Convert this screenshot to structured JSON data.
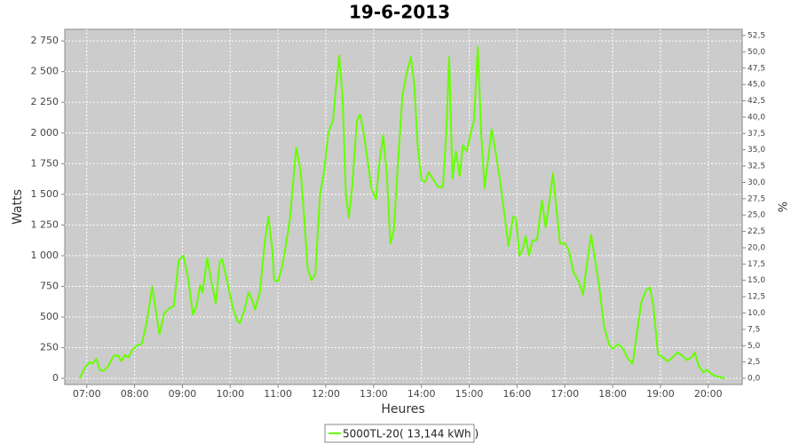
{
  "chart_data": {
    "type": "line",
    "title": "19-6-2013",
    "x_label": "Heures",
    "y_label": "Watts",
    "y2_label": "%",
    "x": [
      6.85,
      6.95,
      7.05,
      7.12,
      7.2,
      7.27,
      7.35,
      7.45,
      7.55,
      7.65,
      7.72,
      7.8,
      7.87,
      7.95,
      8.05,
      8.15,
      8.25,
      8.37,
      8.45,
      8.52,
      8.62,
      8.72,
      8.82,
      8.92,
      9.02,
      9.12,
      9.22,
      9.3,
      9.37,
      9.42,
      9.52,
      9.6,
      9.7,
      9.78,
      9.83,
      9.95,
      10.05,
      10.15,
      10.2,
      10.3,
      10.38,
      10.45,
      10.52,
      10.62,
      10.72,
      10.8,
      10.88,
      10.92,
      11.0,
      11.08,
      11.15,
      11.25,
      11.38,
      11.47,
      11.55,
      11.62,
      11.7,
      11.78,
      11.88,
      11.97,
      12.05,
      12.15,
      12.22,
      12.28,
      12.35,
      12.42,
      12.48,
      12.55,
      12.65,
      12.72,
      12.8,
      12.9,
      12.95,
      13.05,
      13.12,
      13.2,
      13.28,
      13.35,
      13.42,
      13.5,
      13.6,
      13.7,
      13.78,
      13.85,
      13.92,
      14.0,
      14.08,
      14.15,
      14.25,
      14.35,
      14.45,
      14.52,
      14.58,
      14.65,
      14.72,
      14.8,
      14.87,
      14.95,
      15.02,
      15.1,
      15.18,
      15.25,
      15.32,
      15.4,
      15.47,
      15.55,
      15.65,
      15.75,
      15.82,
      15.92,
      15.98,
      16.05,
      16.12,
      16.18,
      16.25,
      16.32,
      16.42,
      16.52,
      16.6,
      16.68,
      16.75,
      16.82,
      16.9,
      17.0,
      17.08,
      17.18,
      17.3,
      17.38,
      17.45,
      17.55,
      17.62,
      17.72,
      17.82,
      17.92,
      18.0,
      18.12,
      18.22,
      18.32,
      18.42,
      18.5,
      18.6,
      18.7,
      18.78,
      18.85,
      18.95,
      19.05,
      19.15,
      19.25,
      19.35,
      19.45,
      19.55,
      19.65,
      19.72,
      19.8,
      19.9,
      19.97,
      20.05,
      20.15,
      20.25,
      20.35
    ],
    "series": [
      {
        "name": "5000TL-20( 13,144 kWh )",
        "color": "#66ff00",
        "values": [
          0,
          80,
          130,
          120,
          160,
          70,
          60,
          100,
          180,
          190,
          140,
          190,
          170,
          230,
          270,
          280,
          450,
          750,
          540,
          360,
          530,
          570,
          590,
          960,
          1000,
          820,
          520,
          600,
          760,
          700,
          980,
          800,
          610,
          950,
          970,
          770,
          580,
          470,
          450,
          560,
          700,
          650,
          560,
          700,
          1100,
          1320,
          1050,
          800,
          790,
          900,
          1050,
          1300,
          1880,
          1700,
          1300,
          900,
          800,
          850,
          1500,
          1700,
          2000,
          2100,
          2400,
          2630,
          2300,
          1500,
          1310,
          1550,
          2100,
          2150,
          1980,
          1700,
          1550,
          1460,
          1750,
          1980,
          1650,
          1100,
          1200,
          1700,
          2300,
          2500,
          2620,
          2400,
          1900,
          1620,
          1600,
          1680,
          1620,
          1560,
          1560,
          2000,
          2620,
          1630,
          1850,
          1650,
          1900,
          1850,
          1980,
          2100,
          2700,
          2000,
          1550,
          1800,
          2030,
          1850,
          1600,
          1300,
          1080,
          1320,
          1300,
          1000,
          1050,
          1160,
          1000,
          1120,
          1130,
          1450,
          1230,
          1450,
          1670,
          1400,
          1100,
          1100,
          1050,
          870,
          780,
          680,
          900,
          1170,
          1000,
          750,
          420,
          280,
          240,
          280,
          240,
          160,
          120,
          350,
          620,
          720,
          740,
          600,
          200,
          170,
          140,
          170,
          210,
          190,
          150,
          170,
          210,
          100,
          50,
          70,
          40,
          20,
          10,
          0
        ]
      }
    ],
    "xlim": [
      6.54,
      20.71
    ],
    "xticks": [
      {
        "value": 7,
        "label": "07:00"
      },
      {
        "value": 8,
        "label": "08:00"
      },
      {
        "value": 9,
        "label": "09:00"
      },
      {
        "value": 10,
        "label": "10:00"
      },
      {
        "value": 11,
        "label": "11:00"
      },
      {
        "value": 12,
        "label": "12:00"
      },
      {
        "value": 13,
        "label": "13:00"
      },
      {
        "value": 14,
        "label": "14:00"
      },
      {
        "value": 15,
        "label": "15:00"
      },
      {
        "value": 16,
        "label": "16:00"
      },
      {
        "value": 17,
        "label": "17:00"
      },
      {
        "value": 18,
        "label": "18:00"
      },
      {
        "value": 19,
        "label": "19:00"
      },
      {
        "value": 20,
        "label": "20:00"
      }
    ],
    "ylim": [
      -50,
      2845
    ],
    "yticks": [
      0,
      250,
      500,
      750,
      {
        "value": 1000,
        "label": "1 000"
      },
      {
        "value": 1250,
        "label": "1 250"
      },
      {
        "value": 1500,
        "label": "1 500"
      },
      {
        "value": 1750,
        "label": "1 750"
      },
      {
        "value": 2000,
        "label": "2 000"
      },
      {
        "value": 2250,
        "label": "2 250"
      },
      {
        "value": 2500,
        "label": "2 500"
      },
      {
        "value": 2750,
        "label": "2 750"
      }
    ],
    "y2lim": [
      -0.95,
      53.45
    ],
    "y2ticks": [
      {
        "value": 0,
        "label": "0,0"
      },
      {
        "value": 2.5,
        "label": "2,5"
      },
      {
        "value": 5,
        "label": "5,0"
      },
      {
        "value": 7.5,
        "label": "7,5"
      },
      {
        "value": 10,
        "label": "10,0"
      },
      {
        "value": 12.5,
        "label": "12,5"
      },
      {
        "value": 15,
        "label": "15,0"
      },
      {
        "value": 17.5,
        "label": "17,5"
      },
      {
        "value": 20,
        "label": "20,0"
      },
      {
        "value": 22.5,
        "label": "22,5"
      },
      {
        "value": 25,
        "label": "25,0"
      },
      {
        "value": 27.5,
        "label": "27,5"
      },
      {
        "value": 30,
        "label": "30,0"
      },
      {
        "value": 32.5,
        "label": "32,5"
      },
      {
        "value": 35,
        "label": "35,0"
      },
      {
        "value": 37.5,
        "label": "37,5"
      },
      {
        "value": 40,
        "label": "40,0"
      },
      {
        "value": 42.5,
        "label": "42,5"
      },
      {
        "value": 45,
        "label": "45,0"
      },
      {
        "value": 47.5,
        "label": "47,5"
      },
      {
        "value": 50,
        "label": "50,0"
      },
      {
        "value": 52.5,
        "label": "52,5"
      }
    ],
    "grid": true
  }
}
